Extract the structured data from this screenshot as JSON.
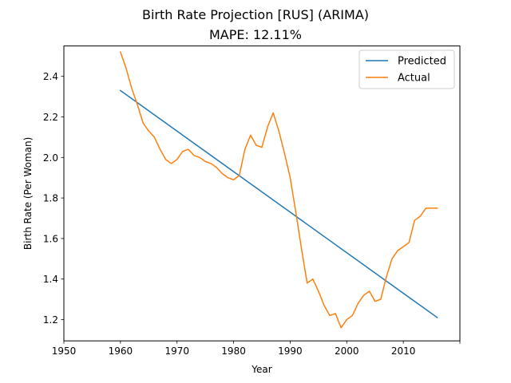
{
  "chart_data": {
    "type": "line",
    "title": "Birth Rate Projection [RUS] (ARIMA)",
    "subtitle": "MAPE: 12.11%",
    "xlabel": "Year",
    "ylabel": "Birth Rate (Per Woman)",
    "xlim": [
      1950,
      2020
    ],
    "ylim": [
      1.095,
      2.55
    ],
    "xticks": [
      1950,
      1960,
      1970,
      1980,
      1990,
      2000,
      2010,
      2020
    ],
    "xtick_labels": [
      "1950",
      "1960",
      "1970",
      "1980",
      "1990",
      "2000",
      "2010",
      ""
    ],
    "yticks": [
      1.2,
      1.4,
      1.6,
      1.8,
      2.0,
      2.2,
      2.4
    ],
    "ytick_labels": [
      "1.2",
      "1.4",
      "1.6",
      "1.8",
      "2.0",
      "2.2",
      "2.4"
    ],
    "grid": false,
    "legend": "top-right",
    "series": [
      {
        "name": "Predicted",
        "color": "#1f77b4",
        "x": [
          1960,
          2016
        ],
        "values": [
          2.33,
          1.21
        ]
      },
      {
        "name": "Actual",
        "color": "#ff7f0e",
        "x": [
          1960,
          1961,
          1962,
          1963,
          1964,
          1965,
          1966,
          1967,
          1968,
          1969,
          1970,
          1971,
          1972,
          1973,
          1974,
          1975,
          1976,
          1977,
          1978,
          1979,
          1980,
          1981,
          1982,
          1983,
          1984,
          1985,
          1986,
          1987,
          1988,
          1989,
          1990,
          1991,
          1992,
          1993,
          1994,
          1995,
          1996,
          1997,
          1998,
          1999,
          2000,
          2001,
          2002,
          2003,
          2004,
          2005,
          2006,
          2007,
          2008,
          2009,
          2010,
          2011,
          2012,
          2013,
          2014,
          2015,
          2016
        ],
        "values": [
          2.52,
          2.44,
          2.34,
          2.26,
          2.17,
          2.13,
          2.1,
          2.04,
          1.99,
          1.97,
          1.99,
          2.03,
          2.04,
          2.01,
          2.0,
          1.98,
          1.97,
          1.95,
          1.92,
          1.9,
          1.89,
          1.91,
          2.04,
          2.11,
          2.06,
          2.05,
          2.15,
          2.22,
          2.13,
          2.02,
          1.9,
          1.73,
          1.55,
          1.38,
          1.4,
          1.34,
          1.27,
          1.22,
          1.23,
          1.16,
          1.2,
          1.22,
          1.28,
          1.32,
          1.34,
          1.29,
          1.3,
          1.41,
          1.5,
          1.54,
          1.56,
          1.58,
          1.69,
          1.71,
          1.75,
          1.75,
          1.75
        ]
      }
    ]
  }
}
